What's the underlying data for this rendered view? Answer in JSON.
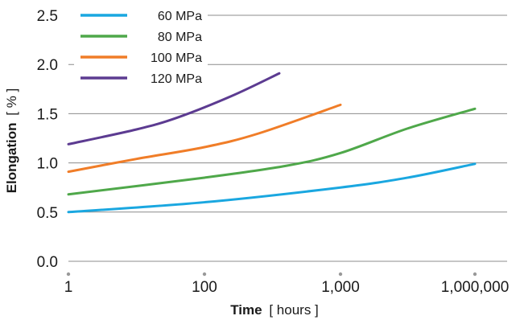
{
  "chart_data": {
    "type": "line",
    "title": "",
    "xlabel": {
      "bold": "Time",
      "unit": "[ hours ]"
    },
    "ylabel": {
      "bold": "Elongation",
      "unit": "[ % ]"
    },
    "xscale": "categorical-log",
    "x_ticks": [
      "1",
      "100",
      "1,000",
      "1,000,000"
    ],
    "y_ticks": [
      "0.0",
      "0.5",
      "1.0",
      "1.5",
      "2.0",
      "2.5"
    ],
    "ylim": [
      0,
      2.5
    ],
    "grid": "horizontal",
    "legend": "top-left",
    "series": [
      {
        "name": "60 MPa",
        "color": "#1aa7e0",
        "points": [
          [
            0,
            0.5
          ],
          [
            1,
            0.6
          ],
          [
            2,
            0.75
          ],
          [
            2.5,
            0.85
          ],
          [
            3,
            0.99
          ]
        ]
      },
      {
        "name": "80 MPa",
        "color": "#4fa84a",
        "points": [
          [
            0,
            0.68
          ],
          [
            1,
            0.85
          ],
          [
            1.6,
            0.97
          ],
          [
            2,
            1.1
          ],
          [
            2.5,
            1.35
          ],
          [
            3,
            1.55
          ]
        ]
      },
      {
        "name": "100 MPa",
        "color": "#f07d28",
        "points": [
          [
            0,
            0.91
          ],
          [
            0.5,
            1.04
          ],
          [
            1,
            1.16
          ],
          [
            1.4,
            1.3
          ],
          [
            2,
            1.59
          ]
        ]
      },
      {
        "name": "120 MPa",
        "color": "#5c3b91",
        "points": [
          [
            0,
            1.19
          ],
          [
            0.5,
            1.34
          ],
          [
            0.8,
            1.46
          ],
          [
            1.2,
            1.68
          ],
          [
            1.55,
            1.91
          ]
        ]
      }
    ]
  }
}
